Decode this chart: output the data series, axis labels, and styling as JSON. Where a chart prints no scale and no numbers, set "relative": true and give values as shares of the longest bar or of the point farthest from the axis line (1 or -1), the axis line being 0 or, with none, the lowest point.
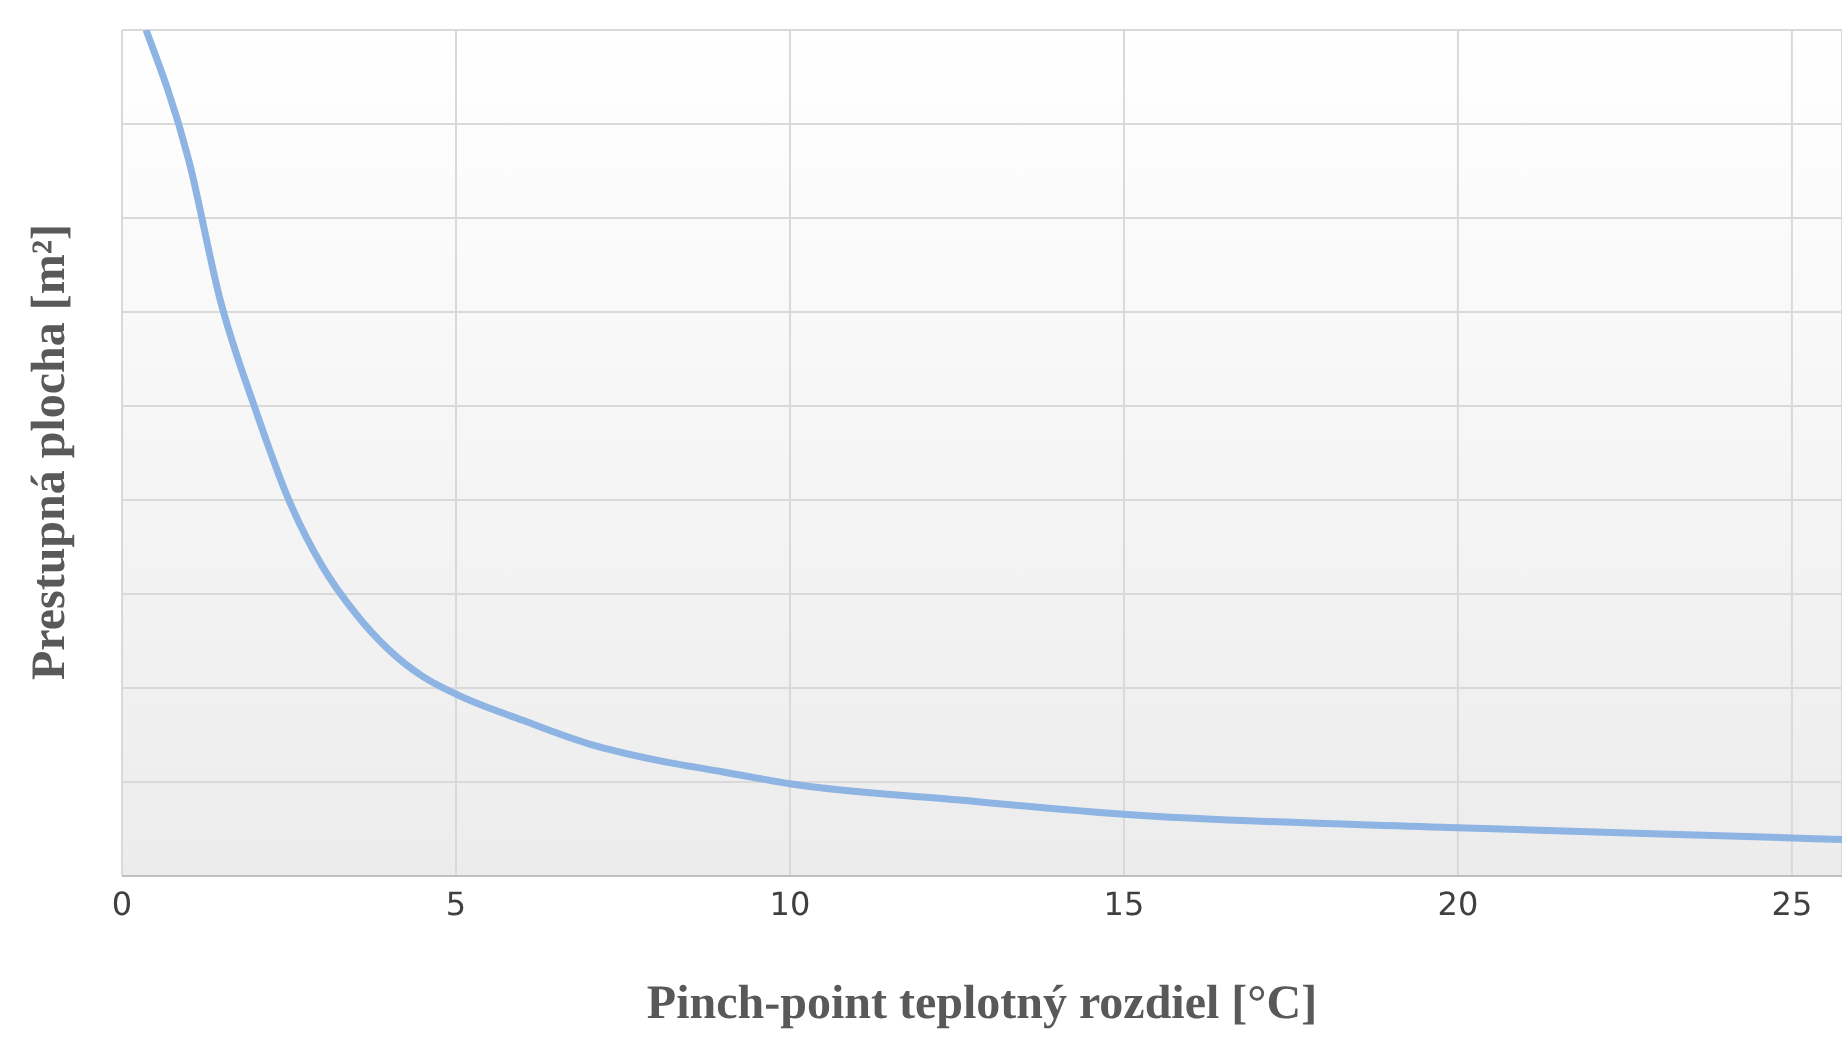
{
  "chart_data": {
    "type": "line",
    "relative": true,
    "xlabel": "Pinch-point teplotný rozdiel [°C]",
    "ylabel": "Prestupná plocha [m²]",
    "xlim": [
      0,
      25.75
    ],
    "xticks": [
      0,
      5,
      10,
      15,
      20,
      25
    ],
    "grid": true,
    "marker": "none",
    "line_style": "solid",
    "series": [
      {
        "color": "#8db4e2",
        "x": [
          0.36,
          1,
          1.47,
          2,
          2.5,
          3,
          3.5,
          4,
          4.5,
          5,
          6,
          7,
          8,
          9,
          10,
          12.5,
          15,
          20,
          25,
          25.75
        ],
        "values": [
          1,
          0.846,
          0.681,
          0.551,
          0.444,
          0.366,
          0.31,
          0.267,
          0.236,
          0.215,
          0.184,
          0.156,
          0.137,
          0.123,
          0.109,
          0.09,
          0.073,
          0.057,
          0.045,
          0.043
        ]
      }
    ]
  }
}
